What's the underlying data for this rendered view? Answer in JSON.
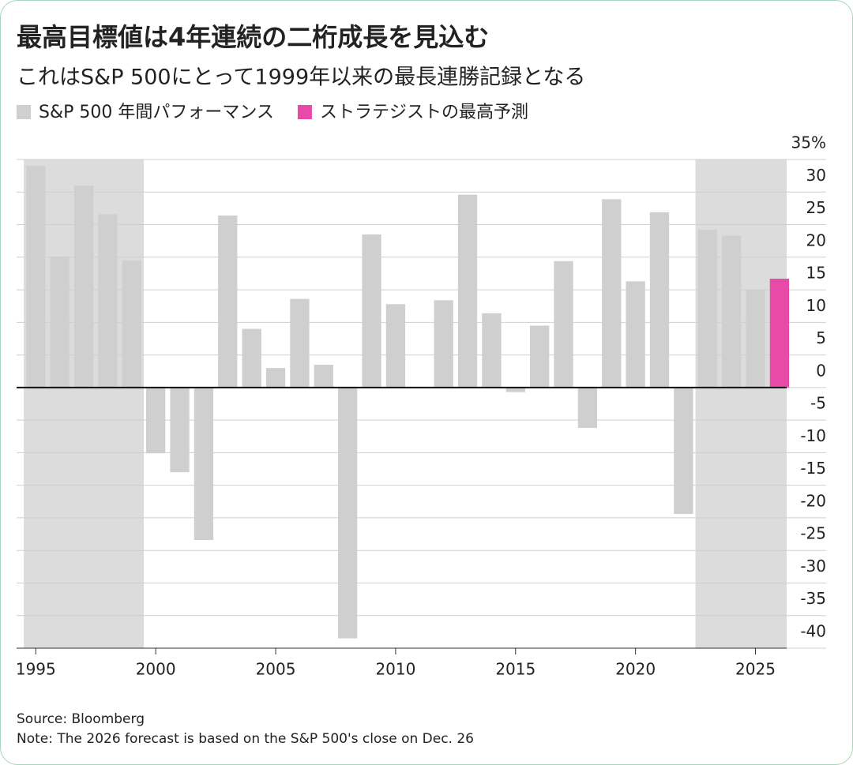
{
  "chart_data": {
    "type": "bar",
    "title": "最高目標値は4年連続の二桁成長を見込む",
    "subtitle": "これはS&P 500にとって1999年以来の最長連勝記録となる",
    "x": [
      1995,
      1996,
      1997,
      1998,
      1999,
      2000,
      2001,
      2002,
      2003,
      2004,
      2005,
      2006,
      2007,
      2008,
      2009,
      2010,
      2011,
      2012,
      2013,
      2014,
      2015,
      2016,
      2017,
      2018,
      2019,
      2020,
      2021,
      2022,
      2023,
      2024,
      2025,
      2026
    ],
    "series": [
      {
        "name": "S&P 500 年間パフォーマンス",
        "color": "#cfcfcf",
        "values": [
          34.0,
          20.1,
          31.0,
          26.6,
          19.5,
          -10.1,
          -13.0,
          -23.4,
          26.4,
          9.0,
          3.0,
          13.6,
          3.5,
          -38.5,
          23.5,
          12.8,
          0.0,
          13.4,
          29.6,
          11.4,
          -0.7,
          9.5,
          19.4,
          -6.2,
          28.9,
          16.3,
          26.9,
          -19.4,
          24.2,
          23.3,
          15.0,
          null
        ]
      },
      {
        "name": "ストラテジストの最高予測",
        "color": "#e84aa8",
        "values": [
          null,
          null,
          null,
          null,
          null,
          null,
          null,
          null,
          null,
          null,
          null,
          null,
          null,
          null,
          null,
          null,
          null,
          null,
          null,
          null,
          null,
          null,
          null,
          null,
          null,
          null,
          null,
          null,
          null,
          null,
          null,
          16.7
        ]
      }
    ],
    "highlight_ranges": [
      [
        1995,
        1999
      ],
      [
        2023,
        2026
      ]
    ],
    "highlight_color": "#dcdcdc",
    "xlim": [
      1994.2,
      2026.3
    ],
    "xticks": [
      1995,
      2000,
      2005,
      2010,
      2015,
      2020,
      2025
    ],
    "ylim": [
      -40,
      35
    ],
    "yticks": [
      {
        "value": 35,
        "label": "35%"
      },
      30,
      25,
      20,
      15,
      10,
      5,
      0,
      -5,
      -10,
      -15,
      -20,
      -25,
      -30,
      -35,
      -40
    ],
    "grid": true,
    "source": "Source: Bloomberg",
    "note": "Note: The 2026 forecast is based on the S&P 500's close on Dec. 26"
  }
}
